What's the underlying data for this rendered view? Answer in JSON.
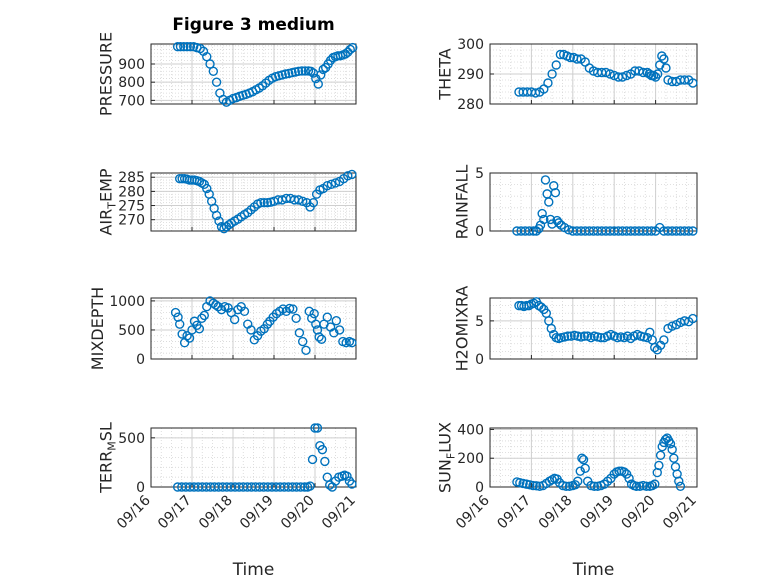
{
  "figure": {
    "title": "Figure 3 medium",
    "colors": {
      "marker": "#0072BD",
      "grid": "#d6d6d6",
      "axis": "#262626"
    }
  },
  "chart_data": [
    {
      "type": "scatter",
      "ylabel": "PRESSURE",
      "title": "Figure 3 medium",
      "yticks": [
        700,
        800,
        900
      ],
      "ylim": [
        680,
        1010
      ],
      "xlim": [
        "09/16",
        "09/21"
      ],
      "xtick_labels": [],
      "xlabel": "",
      "grid": "on",
      "x": [
        0.65,
        0.72,
        0.8,
        0.88,
        0.96,
        1.04,
        1.12,
        1.2,
        1.28,
        1.36,
        1.44,
        1.52,
        1.6,
        1.68,
        1.76,
        1.84,
        1.92,
        2.0,
        2.08,
        2.16,
        2.24,
        2.32,
        2.4,
        2.48,
        2.56,
        2.64,
        2.72,
        2.8,
        2.88,
        2.96,
        3.04,
        3.12,
        3.2,
        3.28,
        3.36,
        3.44,
        3.52,
        3.6,
        3.68,
        3.76,
        3.84,
        3.9,
        3.96,
        4.02,
        4.08,
        4.14,
        4.2,
        4.26,
        4.32,
        4.38,
        4.44,
        4.5,
        4.56,
        4.62,
        4.68,
        4.74,
        4.8,
        4.86,
        4.92
      ],
      "y": [
        995,
        995,
        995,
        995,
        995,
        995,
        990,
        985,
        970,
        940,
        900,
        860,
        800,
        740,
        705,
        690,
        700,
        710,
        715,
        722,
        728,
        733,
        740,
        748,
        758,
        768,
        780,
        795,
        810,
        822,
        830,
        835,
        840,
        845,
        848,
        852,
        856,
        860,
        862,
        862,
        862,
        860,
        850,
        820,
        790,
        840,
        870,
        880,
        900,
        920,
        935,
        940,
        945,
        945,
        950,
        955,
        965,
        980,
        990
      ]
    },
    {
      "type": "scatter",
      "ylabel": "THETA",
      "yticks": [
        280,
        290,
        300
      ],
      "ylim": [
        280,
        300
      ],
      "xlim": [
        "09/16",
        "09/21"
      ],
      "xtick_labels": [],
      "xlabel": "",
      "grid": "on",
      "x": [
        0.7,
        0.8,
        0.9,
        1.0,
        1.1,
        1.2,
        1.3,
        1.4,
        1.5,
        1.6,
        1.7,
        1.78,
        1.86,
        1.94,
        2.02,
        2.1,
        2.2,
        2.3,
        2.4,
        2.5,
        2.6,
        2.7,
        2.8,
        2.9,
        3.0,
        3.1,
        3.2,
        3.3,
        3.4,
        3.5,
        3.6,
        3.7,
        3.8,
        3.85,
        3.9,
        3.95,
        4.0,
        4.05,
        4.1,
        4.15,
        4.2,
        4.25,
        4.3,
        4.4,
        4.5,
        4.6,
        4.7,
        4.8,
        4.9
      ],
      "y": [
        284,
        284,
        284,
        284,
        283.7,
        284,
        285,
        287,
        290,
        293,
        296.5,
        296.5,
        296,
        295.5,
        295.5,
        295,
        295,
        294,
        292,
        291,
        290.5,
        290.5,
        290.5,
        290,
        289.5,
        289,
        289,
        289.5,
        290,
        291,
        291,
        290.5,
        290.5,
        290,
        289.5,
        289.5,
        289,
        290,
        293,
        296,
        295,
        292,
        288,
        287.5,
        287.5,
        288,
        288,
        288,
        287
      ]
    },
    {
      "type": "scatter",
      "ylabel": "AIR_TEMP",
      "yticks": [
        270,
        275,
        280,
        285
      ],
      "ylim": [
        266,
        286.5
      ],
      "xlim": [
        "09/16",
        "09/21"
      ],
      "xtick_labels": [],
      "xlabel": "",
      "grid": "on",
      "x": [
        0.7,
        0.76,
        0.82,
        0.88,
        0.94,
        1.0,
        1.06,
        1.12,
        1.18,
        1.24,
        1.3,
        1.36,
        1.42,
        1.48,
        1.54,
        1.6,
        1.66,
        1.72,
        1.78,
        1.84,
        1.9,
        1.96,
        2.04,
        2.12,
        2.2,
        2.28,
        2.36,
        2.44,
        2.52,
        2.6,
        2.68,
        2.76,
        2.84,
        2.92,
        3.0,
        3.1,
        3.2,
        3.3,
        3.4,
        3.5,
        3.6,
        3.7,
        3.8,
        3.88,
        3.96,
        4.04,
        4.12,
        4.2,
        4.3,
        4.4,
        4.5,
        4.6,
        4.7,
        4.8,
        4.9
      ],
      "y": [
        284.5,
        284.5,
        284.5,
        284.3,
        284,
        284,
        284,
        283.8,
        283.5,
        283,
        282.5,
        281,
        279,
        276.5,
        274,
        271.5,
        269.5,
        267.5,
        266.8,
        267.5,
        268.2,
        268.8,
        269.5,
        270.2,
        271,
        271.8,
        272.5,
        273.5,
        274.5,
        275.5,
        276,
        276,
        276,
        276.2,
        276.5,
        277,
        277,
        277.5,
        277.5,
        277,
        277,
        276.5,
        276,
        274.5,
        276,
        279,
        280.5,
        281,
        282,
        282.5,
        283,
        283.5,
        284.5,
        285.5,
        286
      ]
    },
    {
      "type": "scatter",
      "ylabel": "RAINFALL",
      "yticks": [
        0,
        5
      ],
      "ylim": [
        0,
        5
      ],
      "xlim": [
        "09/16",
        "09/21"
      ],
      "xtick_labels": [],
      "xlabel": "",
      "grid": "on",
      "x": [
        0.65,
        0.75,
        0.85,
        0.95,
        1.05,
        1.12,
        1.18,
        1.22,
        1.26,
        1.3,
        1.34,
        1.38,
        1.42,
        1.46,
        1.5,
        1.54,
        1.58,
        1.62,
        1.66,
        1.72,
        1.8,
        1.9,
        2.0,
        2.1,
        2.2,
        2.3,
        2.4,
        2.5,
        2.6,
        2.7,
        2.8,
        2.9,
        3.0,
        3.1,
        3.2,
        3.3,
        3.4,
        3.5,
        3.6,
        3.7,
        3.8,
        3.9,
        4.0,
        4.1,
        4.2,
        4.3,
        4.4,
        4.5,
        4.6,
        4.7,
        4.8,
        4.9
      ],
      "y": [
        0,
        0,
        0,
        0,
        0,
        0,
        0.2,
        0.5,
        1.5,
        1.0,
        4.4,
        3.2,
        2.5,
        1.0,
        0.6,
        3.9,
        3.3,
        0.9,
        0.7,
        0.5,
        0.3,
        0.1,
        0,
        0,
        0,
        0,
        0,
        0,
        0,
        0,
        0,
        0,
        0,
        0,
        0,
        0,
        0,
        0,
        0,
        0,
        0,
        0,
        0,
        0.3,
        0,
        0,
        0,
        0,
        0,
        0,
        0,
        0
      ]
    },
    {
      "type": "scatter",
      "ylabel": "MIXDEPTH",
      "yticks": [
        0,
        500,
        1000
      ],
      "ylim": [
        0,
        1050
      ],
      "xlim": [
        "09/16",
        "09/21"
      ],
      "xtick_labels": [],
      "xlabel": "",
      "grid": "on",
      "x": [
        0.6,
        0.66,
        0.7,
        0.76,
        0.82,
        0.88,
        0.94,
        1.0,
        1.06,
        1.12,
        1.18,
        1.24,
        1.3,
        1.36,
        1.44,
        1.52,
        1.58,
        1.64,
        1.72,
        1.8,
        1.88,
        1.96,
        2.04,
        2.12,
        2.2,
        2.28,
        2.36,
        2.44,
        2.52,
        2.6,
        2.68,
        2.76,
        2.84,
        2.9,
        2.98,
        3.06,
        3.14,
        3.22,
        3.3,
        3.38,
        3.46,
        3.54,
        3.62,
        3.7,
        3.78,
        3.86,
        3.92,
        3.98,
        4.02,
        4.06,
        4.1,
        4.16,
        4.22,
        4.3,
        4.38,
        4.46,
        4.52,
        4.6,
        4.68,
        4.76,
        4.84,
        4.9
      ],
      "y": [
        800,
        720,
        600,
        430,
        280,
        400,
        360,
        500,
        650,
        580,
        520,
        700,
        750,
        900,
        1000,
        960,
        930,
        900,
        850,
        900,
        880,
        800,
        680,
        850,
        900,
        820,
        600,
        500,
        330,
        400,
        480,
        520,
        600,
        650,
        720,
        780,
        820,
        860,
        820,
        870,
        860,
        700,
        450,
        300,
        150,
        820,
        700,
        780,
        600,
        500,
        380,
        340,
        600,
        720,
        550,
        450,
        660,
        500,
        300,
        280,
        300,
        280
      ]
    },
    {
      "type": "scatter",
      "ylabel": "H2OMIXRA",
      "yticks": [
        0,
        5
      ],
      "ylim": [
        0,
        8
      ],
      "xlim": [
        "09/16",
        "09/21"
      ],
      "xtick_labels": [],
      "xlabel": "",
      "grid": "on",
      "x": [
        0.7,
        0.76,
        0.82,
        0.88,
        0.94,
        1.0,
        1.06,
        1.12,
        1.18,
        1.24,
        1.3,
        1.36,
        1.42,
        1.48,
        1.54,
        1.6,
        1.66,
        1.72,
        1.8,
        1.88,
        1.96,
        2.04,
        2.12,
        2.2,
        2.28,
        2.36,
        2.44,
        2.52,
        2.6,
        2.68,
        2.76,
        2.84,
        2.92,
        3.0,
        3.08,
        3.16,
        3.24,
        3.32,
        3.4,
        3.48,
        3.56,
        3.64,
        3.72,
        3.8,
        3.86,
        3.92,
        3.98,
        4.04,
        4.12,
        4.2,
        4.3,
        4.4,
        4.5,
        4.6,
        4.7,
        4.8,
        4.9
      ],
      "y": [
        7,
        7,
        6.9,
        7,
        7,
        7.2,
        7.3,
        7.5,
        7,
        6.8,
        6.5,
        6,
        5,
        4,
        3.2,
        2.8,
        2.7,
        2.8,
        2.9,
        3,
        3,
        3.1,
        3,
        2.9,
        3,
        3,
        2.8,
        3,
        2.9,
        2.8,
        2.8,
        3,
        3.2,
        3,
        2.8,
        2.9,
        2.8,
        3,
        2.7,
        3,
        3.2,
        3,
        2.9,
        2.8,
        3.5,
        2.5,
        1.5,
        1.2,
        1.8,
        2.5,
        4,
        4.3,
        4.5,
        4.8,
        5,
        4.9,
        5.3
      ]
    },
    {
      "type": "scatter",
      "ylabel": "TERR_MSL",
      "yticks": [
        0,
        500
      ],
      "ylim": [
        0,
        600
      ],
      "xlim": [
        "09/16",
        "09/21"
      ],
      "xtick_labels": [
        "09/16",
        "09/17",
        "09/18",
        "09/19",
        "09/20",
        "09/21"
      ],
      "xlabel": "Time",
      "grid": "on",
      "x": [
        0.65,
        0.75,
        0.85,
        0.95,
        1.05,
        1.15,
        1.25,
        1.35,
        1.45,
        1.55,
        1.65,
        1.75,
        1.85,
        1.95,
        2.05,
        2.15,
        2.25,
        2.35,
        2.45,
        2.55,
        2.65,
        2.75,
        2.85,
        2.95,
        3.05,
        3.15,
        3.25,
        3.35,
        3.45,
        3.55,
        3.65,
        3.75,
        3.82,
        3.88,
        3.94,
        4.0,
        4.06,
        4.12,
        4.18,
        4.24,
        4.3,
        4.36,
        4.42,
        4.5,
        4.58,
        4.66,
        4.72,
        4.78,
        4.84,
        4.9
      ],
      "y": [
        0,
        0,
        0,
        0,
        0,
        0,
        0,
        0,
        0,
        0,
        0,
        0,
        0,
        0,
        0,
        0,
        0,
        0,
        0,
        0,
        0,
        0,
        0,
        0,
        0,
        0,
        0,
        0,
        0,
        0,
        0,
        0,
        0,
        10,
        280,
        600,
        600,
        420,
        380,
        260,
        100,
        20,
        0,
        60,
        100,
        110,
        120,
        110,
        60,
        30
      ]
    },
    {
      "type": "scatter",
      "ylabel": "SUN_FLUX",
      "yticks": [
        0,
        200,
        400
      ],
      "ylim": [
        0,
        410
      ],
      "xlim": [
        "09/16",
        "09/21"
      ],
      "xtick_labels": [
        "09/16",
        "09/17",
        "09/18",
        "09/19",
        "09/20",
        "09/21"
      ],
      "xlabel": "Time",
      "grid": "on",
      "x": [
        0.65,
        0.72,
        0.8,
        0.88,
        0.96,
        1.04,
        1.12,
        1.2,
        1.28,
        1.36,
        1.44,
        1.5,
        1.56,
        1.62,
        1.68,
        1.76,
        1.84,
        1.92,
        2.0,
        2.06,
        2.12,
        2.18,
        2.22,
        2.26,
        2.3,
        2.36,
        2.44,
        2.52,
        2.6,
        2.68,
        2.76,
        2.84,
        2.92,
        3.0,
        3.06,
        3.12,
        3.18,
        3.24,
        3.3,
        3.36,
        3.42,
        3.48,
        3.54,
        3.62,
        3.7,
        3.78,
        3.86,
        3.92,
        3.98,
        4.04,
        4.08,
        4.12,
        4.16,
        4.2,
        4.24,
        4.28,
        4.32,
        4.36,
        4.4,
        4.44,
        4.48,
        4.52,
        4.56,
        4.6
      ],
      "y": [
        35,
        30,
        25,
        20,
        15,
        10,
        8,
        5,
        10,
        25,
        40,
        50,
        60,
        55,
        30,
        10,
        5,
        5,
        10,
        15,
        40,
        110,
        200,
        190,
        130,
        40,
        10,
        5,
        5,
        10,
        20,
        40,
        60,
        90,
        105,
        110,
        110,
        105,
        90,
        60,
        20,
        10,
        5,
        5,
        10,
        5,
        5,
        10,
        20,
        100,
        150,
        220,
        280,
        310,
        330,
        340,
        320,
        300,
        260,
        200,
        140,
        90,
        40,
        5
      ]
    }
  ]
}
